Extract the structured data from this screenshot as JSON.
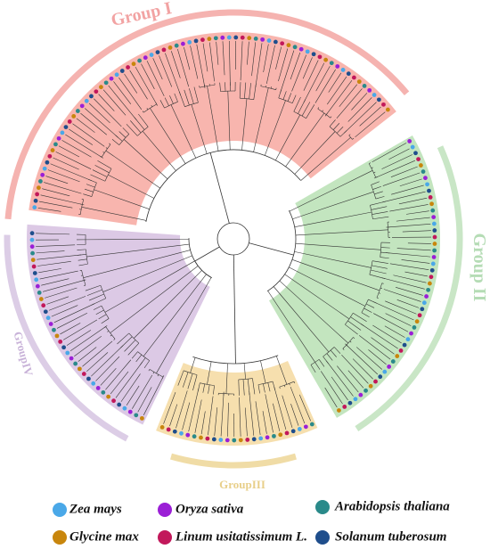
{
  "groups": [
    {
      "label": "Group I"
    },
    {
      "label": "Group II"
    },
    {
      "label": "GroupIII"
    },
    {
      "label": "GroupIV"
    }
  ],
  "legend": [
    {
      "label": "Zea mays"
    },
    {
      "label": "Oryza sativa"
    },
    {
      "label": "Arabidopsis thaliana"
    },
    {
      "label": "Glycine max"
    },
    {
      "label": "Linum usitatissimum L."
    },
    {
      "label": "Solanum tuberosum"
    }
  ]
}
